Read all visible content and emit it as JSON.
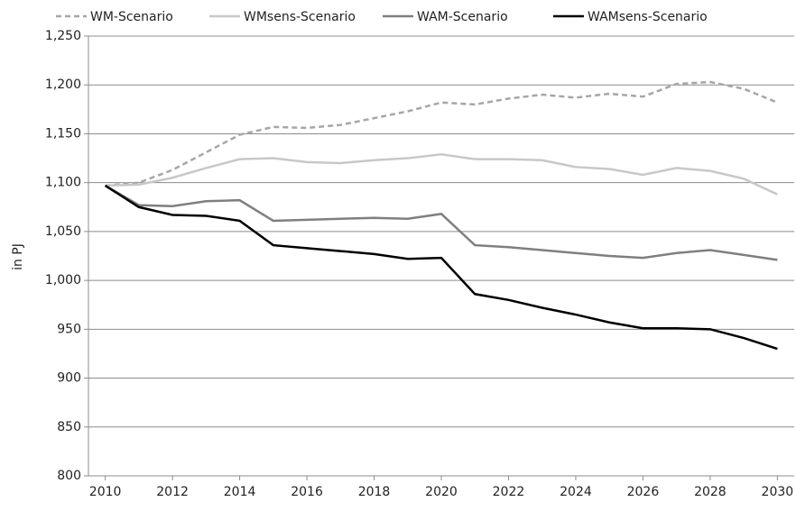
{
  "chart_data": {
    "type": "line",
    "y_label": "in PJ",
    "x": [
      2010,
      2011,
      2012,
      2013,
      2014,
      2015,
      2016,
      2017,
      2018,
      2019,
      2020,
      2021,
      2022,
      2023,
      2024,
      2025,
      2026,
      2027,
      2028,
      2029,
      2030
    ],
    "series": [
      {
        "name": "WM-Scenario",
        "color": "#a6a6a6",
        "dashed": true,
        "values": [
          1097,
          1100,
          1113,
          1131,
          1149,
          1157,
          1156,
          1159,
          1166,
          1173,
          1182,
          1180,
          1186,
          1190,
          1187,
          1191,
          1188,
          1201,
          1203,
          1196,
          1182
        ]
      },
      {
        "name": "WMsens-Scenario",
        "color": "#c8c8c8",
        "dashed": false,
        "values": [
          1097,
          1098,
          1105,
          1115,
          1124,
          1125,
          1121,
          1120,
          1123,
          1125,
          1129,
          1124,
          1124,
          1123,
          1116,
          1114,
          1108,
          1115,
          1112,
          1104,
          1088
        ]
      },
      {
        "name": "WAM-Scenario",
        "color": "#7f7f7f",
        "dashed": false,
        "values": [
          1097,
          1077,
          1076,
          1081,
          1082,
          1061,
          1062,
          1063,
          1064,
          1063,
          1068,
          1036,
          1034,
          1031,
          1028,
          1025,
          1023,
          1028,
          1031,
          1026,
          1021
        ]
      },
      {
        "name": "WAMsens-Scenario",
        "color": "#000000",
        "dashed": false,
        "values": [
          1097,
          1075,
          1067,
          1066,
          1061,
          1036,
          1033,
          1030,
          1027,
          1022,
          1023,
          986,
          980,
          972,
          965,
          957,
          951,
          951,
          950,
          941,
          930
        ]
      }
    ],
    "xlim": [
      2009.5,
      2030.5
    ],
    "xticks": [
      2010,
      2012,
      2014,
      2016,
      2018,
      2020,
      2022,
      2024,
      2026,
      2028,
      2030
    ],
    "ylim": [
      800,
      1250
    ],
    "yticks": [
      800,
      850,
      900,
      950,
      {
        "value": 1000,
        "label": "1,000"
      },
      {
        "value": 1050,
        "label": "1,050"
      },
      {
        "value": 1100,
        "label": "1,100"
      },
      {
        "value": 1150,
        "label": "1,150"
      },
      {
        "value": 1200,
        "label": "1,200"
      },
      {
        "value": 1250,
        "label": "1,250"
      }
    ],
    "grid": true,
    "legend": "top"
  }
}
